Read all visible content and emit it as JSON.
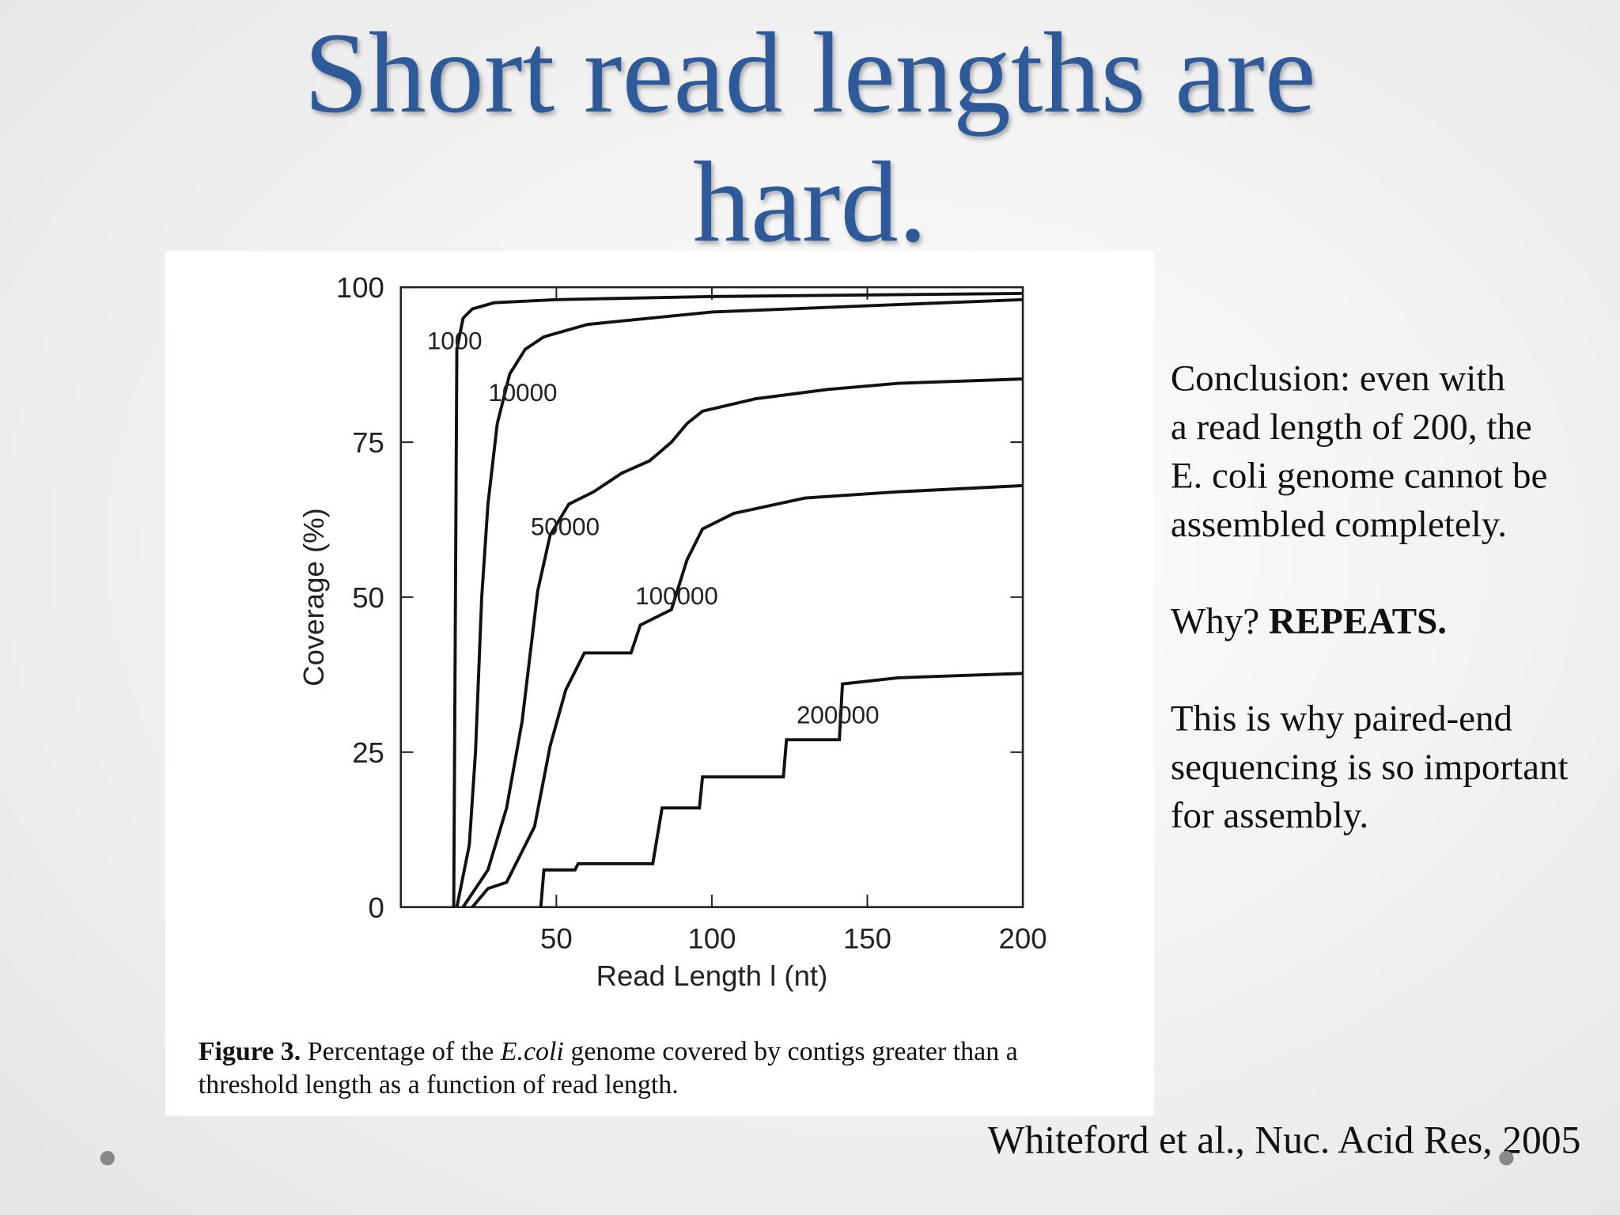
{
  "slide": {
    "title": "Short read lengths are hard.",
    "notes": [
      {
        "lines": [
          "Conclusion: even with",
          "a read length of 200, the",
          "E. coli genome cannot be",
          "assembled completely."
        ]
      },
      {
        "lead": "Why?",
        "bold": "REPEATS."
      },
      {
        "lines": [
          "This is why paired-end",
          "sequencing is so important",
          "for assembly."
        ]
      }
    ],
    "citation": "Whiteford et al., Nuc. Acid Res, 2005",
    "caption": {
      "label": "Figure 3.",
      "parts": [
        "Percentage of the",
        "E.coli",
        "genome covered by contigs greater than a",
        "threshold length as a function of read length."
      ]
    }
  },
  "chart_data": {
    "type": "line",
    "x_label": "Read Length l (nt)",
    "y_label": "Coverage (%)",
    "xlim": [
      0,
      200
    ],
    "xticks": [
      50,
      100,
      150,
      200
    ],
    "ylim": [
      0,
      100
    ],
    "yticks": [
      0,
      25,
      50,
      75,
      100
    ],
    "grid": false,
    "series": [
      {
        "name": "1000",
        "color": "#111111",
        "x": [
          17,
          18,
          20,
          23,
          30,
          50,
          100,
          200
        ],
        "values": [
          0,
          90,
          95,
          96.5,
          97.5,
          98,
          98.5,
          99
        ]
      },
      {
        "name": "10000",
        "color": "#111111",
        "x": [
          18,
          20,
          22,
          24,
          26,
          28,
          31,
          35,
          40,
          46,
          60,
          100,
          200
        ],
        "values": [
          0,
          5,
          10,
          25,
          50,
          65,
          78,
          86,
          90,
          92,
          94,
          96,
          98
        ]
      },
      {
        "name": "50000",
        "color": "#111111",
        "x": [
          20,
          28,
          34,
          39,
          44,
          48,
          54,
          62,
          71,
          80,
          87,
          92,
          97,
          114,
          137,
          160,
          200
        ],
        "values": [
          0,
          6,
          16,
          30,
          51,
          60,
          65,
          67,
          70,
          72,
          75,
          78,
          80,
          82,
          83.5,
          84.5,
          85.2
        ]
      },
      {
        "name": "100000",
        "color": "#111111",
        "x": [
          23,
          28,
          34,
          43,
          48,
          53,
          59,
          74,
          77,
          87,
          92,
          97,
          107,
          130,
          160,
          200
        ],
        "values": [
          0,
          3,
          4,
          13,
          26,
          35,
          41,
          41,
          45.5,
          48,
          56,
          61,
          63.5,
          66,
          67,
          68
        ]
      },
      {
        "name": "200000",
        "color": "#111111",
        "x": [
          45,
          46,
          56,
          57,
          81,
          84,
          96,
          97,
          123,
          124,
          141,
          142,
          160,
          200
        ],
        "values": [
          0,
          6,
          6,
          7,
          7,
          16,
          16,
          21,
          21,
          27,
          27,
          36,
          37,
          37.7
        ]
      }
    ]
  }
}
